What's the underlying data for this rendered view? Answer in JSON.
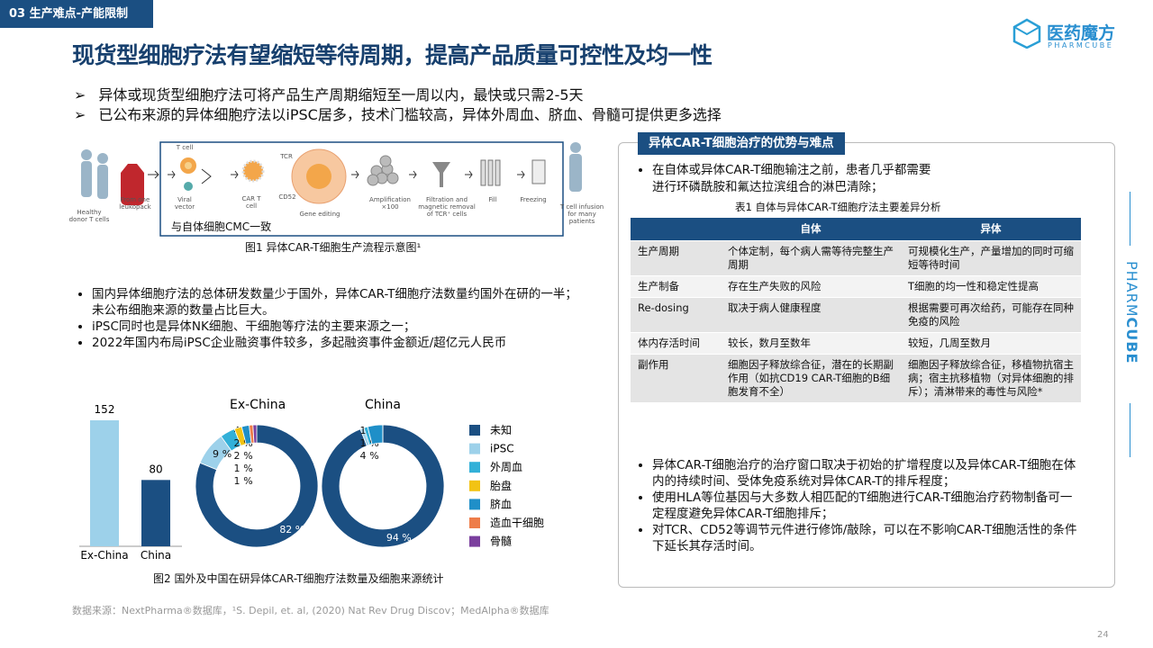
{
  "section_tag": "03 生产难点-产能限制",
  "logo": {
    "name": "医药魔方",
    "sub": "PHARMCUBE"
  },
  "side_brand": [
    "PHARM",
    "CUBE"
  ],
  "title": "现货型细胞疗法有望缩短等待周期，提高产品质量可控性及均一性",
  "top_bullets": [
    "异体或现货型细胞疗法可将产品生产周期缩短至一周以内，最快或只需2-5天",
    "已公布来源的异体细胞疗法以iPSC居多，技术门槛较高，异体外周血、脐血、骨髓可提供更多选择"
  ],
  "figure1": {
    "labels": [
      "Healthy donor T cells",
      "From one leukopack",
      "T cell",
      "Viral vector",
      "CAR T cell",
      "TCR",
      "CD52",
      "Gene editing",
      "Amplification ×100",
      "Filtration and magnetic removal of TCR⁺ cells",
      "Fill",
      "Freezing",
      "T cell infusion for many patients"
    ],
    "note": "与自体细胞CMC一致",
    "caption": "图1 异体CAR-T细胞生产流程示意图¹"
  },
  "left_bullets": [
    "国内异体细胞疗法的总体研发数量少于国外，异体CAR-T细胞疗法数量约国外在研的一半；未公布细胞来源的数量占比巨大。",
    "iPSC同时也是异体NK细胞、干细胞等疗法的主要来源之一；",
    "2022年国内布局iPSC企业融资事件较多，多起融资事件金额近/超亿元人民币"
  ],
  "chart_data": [
    {
      "type": "bar",
      "categories": [
        "Ex-China",
        "China"
      ],
      "values": [
        152,
        80
      ],
      "colors": [
        "#9dd1ea",
        "#1b4f82"
      ]
    },
    {
      "type": "pie",
      "title": "Ex-China",
      "categories": [
        "未知",
        "iPSC",
        "外周血",
        "胎盘",
        "脐血",
        "造血干细胞",
        "骨髓"
      ],
      "values": [
        82,
        9,
        4,
        2,
        2,
        1,
        1
      ],
      "colors": [
        "#1b4f82",
        "#9dd1ea",
        "#32b0d8",
        "#f2c314",
        "#1f8fc8",
        "#ee7d4a",
        "#7b3f9e"
      ],
      "legend": true
    },
    {
      "type": "pie",
      "title": "China",
      "categories": [
        "未知",
        "iPSC",
        "外周血",
        "胎盘",
        "脐血",
        "造血干细胞",
        "骨髓"
      ],
      "values": [
        94,
        1,
        1,
        0,
        4,
        0,
        0
      ],
      "colors": [
        "#1b4f82",
        "#9dd1ea",
        "#32b0d8",
        "#f2c314",
        "#1f8fc8",
        "#ee7d4a",
        "#7b3f9e"
      ],
      "legend": false
    }
  ],
  "figure2_caption": "图2 国外及中国在研异体CAR-T细胞疗法数量及细胞来源统计",
  "panel": {
    "header": "异体CAR-T细胞治疗的优势与难点",
    "intro": "在自体或异体CAR-T细胞输注之前，患者几乎都需要进行环磷酰胺和氟达拉滨组合的淋巴清除；",
    "table": {
      "caption": "表1 自体与异体CAR-T细胞疗法主要差异分析",
      "header": [
        "自体",
        "异体"
      ],
      "rows": [
        [
          "生产周期",
          "个体定制，每个病人需等待完整生产周期",
          "可规模化生产，产量增加的同时可缩短等待时间"
        ],
        [
          "生产制备",
          "存在生产失败的风险",
          "T细胞的均一性和稳定性提高"
        ],
        [
          "Re-dosing",
          "取决于病人健康程度",
          "根据需要可再次给药，可能存在同种免疫的风险"
        ],
        [
          "体内存活时间",
          "较长，数月至数年",
          "较短，几周至数月"
        ],
        [
          "副作用",
          "细胞因子释放综合征，潜在的长期副作用（如抗CD19 CAR-T细胞的B细胞发育不全）",
          "细胞因子释放综合征，移植物抗宿主病；宿主抗移植物（对异体细胞的排斥）；清淋带来的毒性与风险*"
        ]
      ]
    },
    "bullets": [
      "异体CAR-T细胞治疗的治疗窗口取决于初始的扩增程度以及异体CAR-T细胞在体内的持续时间、受体免疫系统对异体CAR-T的排斥程度；",
      "使用HLA等位基因与大多数人相匹配的T细胞进行CAR-T细胞治疗药物制备可一定程度避免异体CAR-T细胞排斥；",
      "对TCR、CD52等调节元件进行修饰/敲除，可以在不影响CAR-T细胞活性的条件下延长其存活时间。"
    ]
  },
  "source": "数据来源：NextPharma®数据库，¹S. Depil, et. al, (2020) Nat Rev Drug Discov；MedAlpha®数据库",
  "page_number": "24"
}
